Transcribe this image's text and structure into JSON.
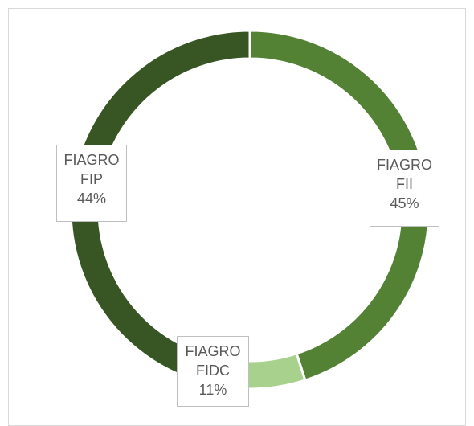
{
  "chart_data": {
    "type": "donut",
    "categories": [
      "FIAGRO FII",
      "FIAGRO FIDC",
      "FIAGRO FIP"
    ],
    "values": [
      45,
      11,
      44
    ],
    "value_labels": [
      "45%",
      "11%",
      "44%"
    ],
    "colors": [
      "#548235",
      "#a9d18e",
      "#375623"
    ]
  }
}
